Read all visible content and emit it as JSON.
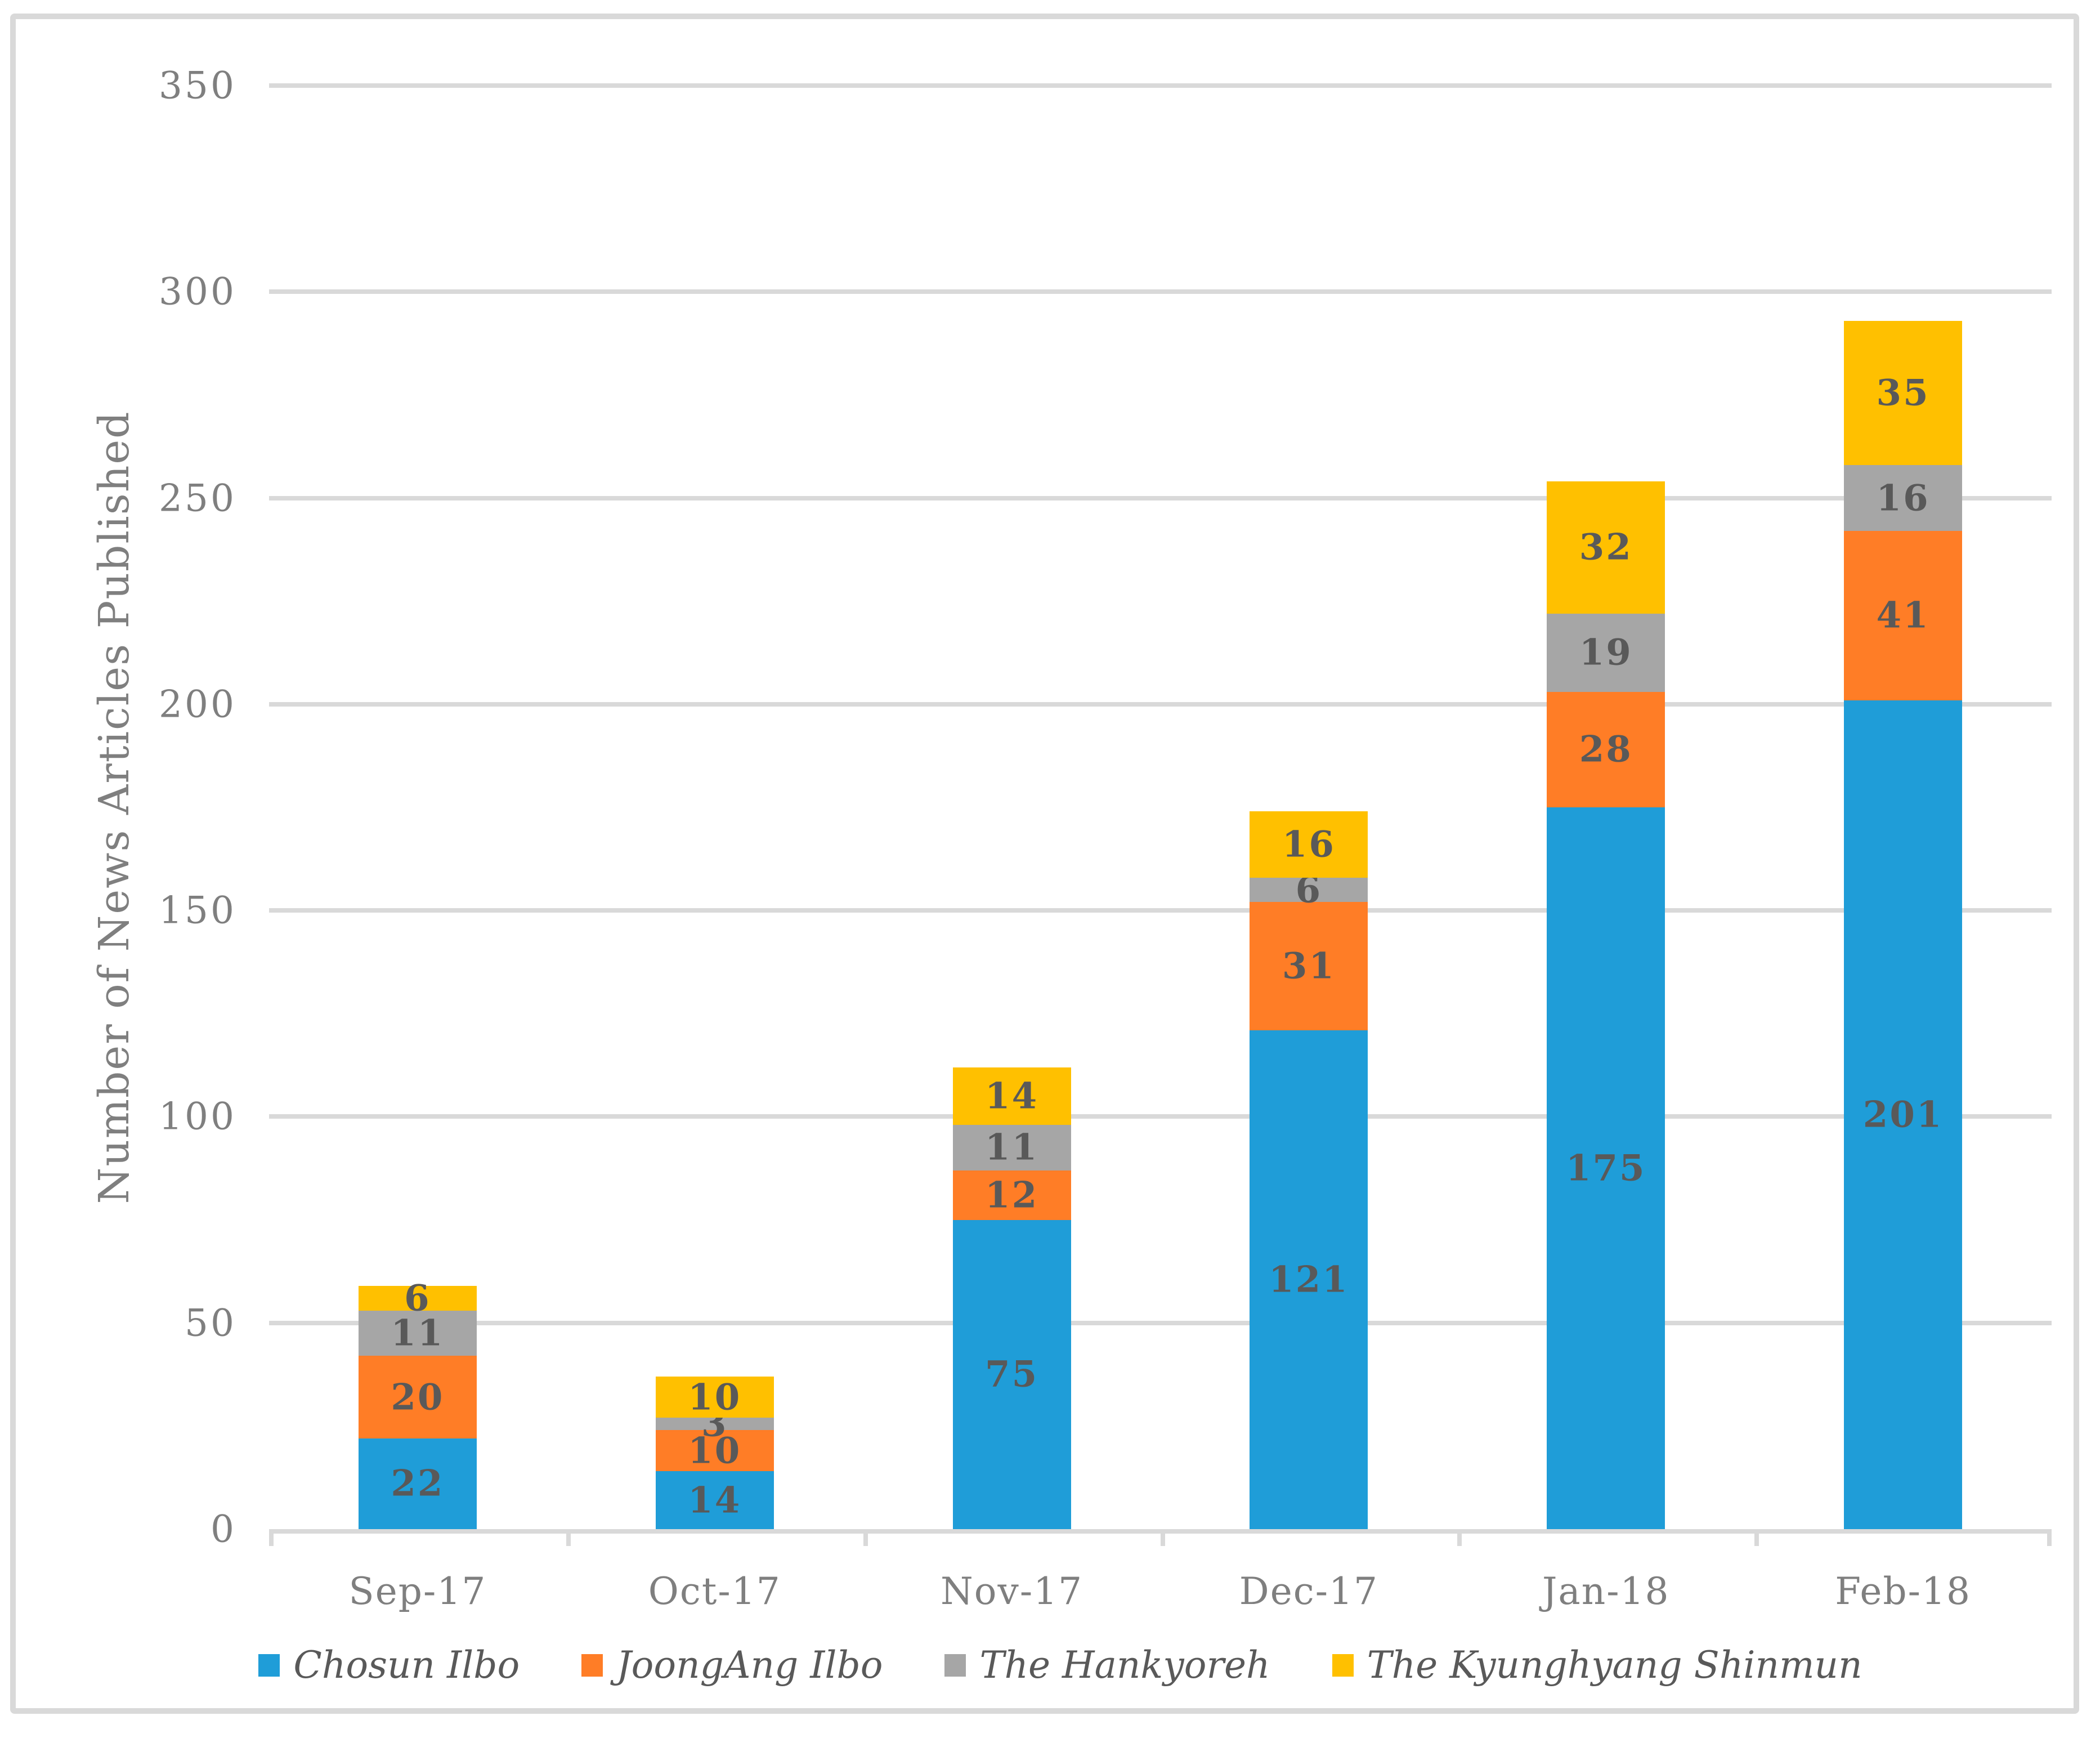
{
  "chart_data": {
    "type": "bar",
    "stacked": true,
    "title": "",
    "xlabel": "",
    "ylabel": "Number of News Articles Published",
    "ylim": [
      0,
      350
    ],
    "ytick_interval": 50,
    "yticks": [
      0,
      50,
      100,
      150,
      200,
      250,
      300,
      350
    ],
    "categories": [
      "Sep-17",
      "Oct-17",
      "Nov-17",
      "Dec-17",
      "Jan-18",
      "Feb-18"
    ],
    "series": [
      {
        "name": "Chosun Ilbo",
        "color": "#1F9DD8",
        "values": [
          22,
          14,
          75,
          121,
          175,
          201
        ]
      },
      {
        "name": "JoongAng Ilbo",
        "color": "#FF7D26",
        "values": [
          20,
          10,
          12,
          31,
          28,
          41
        ]
      },
      {
        "name": "The Hankyoreh",
        "color": "#A6A6A6",
        "values": [
          11,
          3,
          11,
          6,
          19,
          16
        ]
      },
      {
        "name": "The Kyunghyang Shinmun",
        "color": "#FFC000",
        "values": [
          6,
          10,
          14,
          16,
          32,
          35
        ]
      }
    ],
    "totals": [
      59,
      37,
      112,
      174,
      254,
      293
    ],
    "grid": true,
    "legend_position": "bottom",
    "data_labels": true,
    "colors": {
      "gridline": "#D9D9D9",
      "frame_border": "#D9D9D9",
      "axis_text": "#7F7F7F",
      "data_label_text": "#595959",
      "legend_text": "#595959"
    }
  }
}
